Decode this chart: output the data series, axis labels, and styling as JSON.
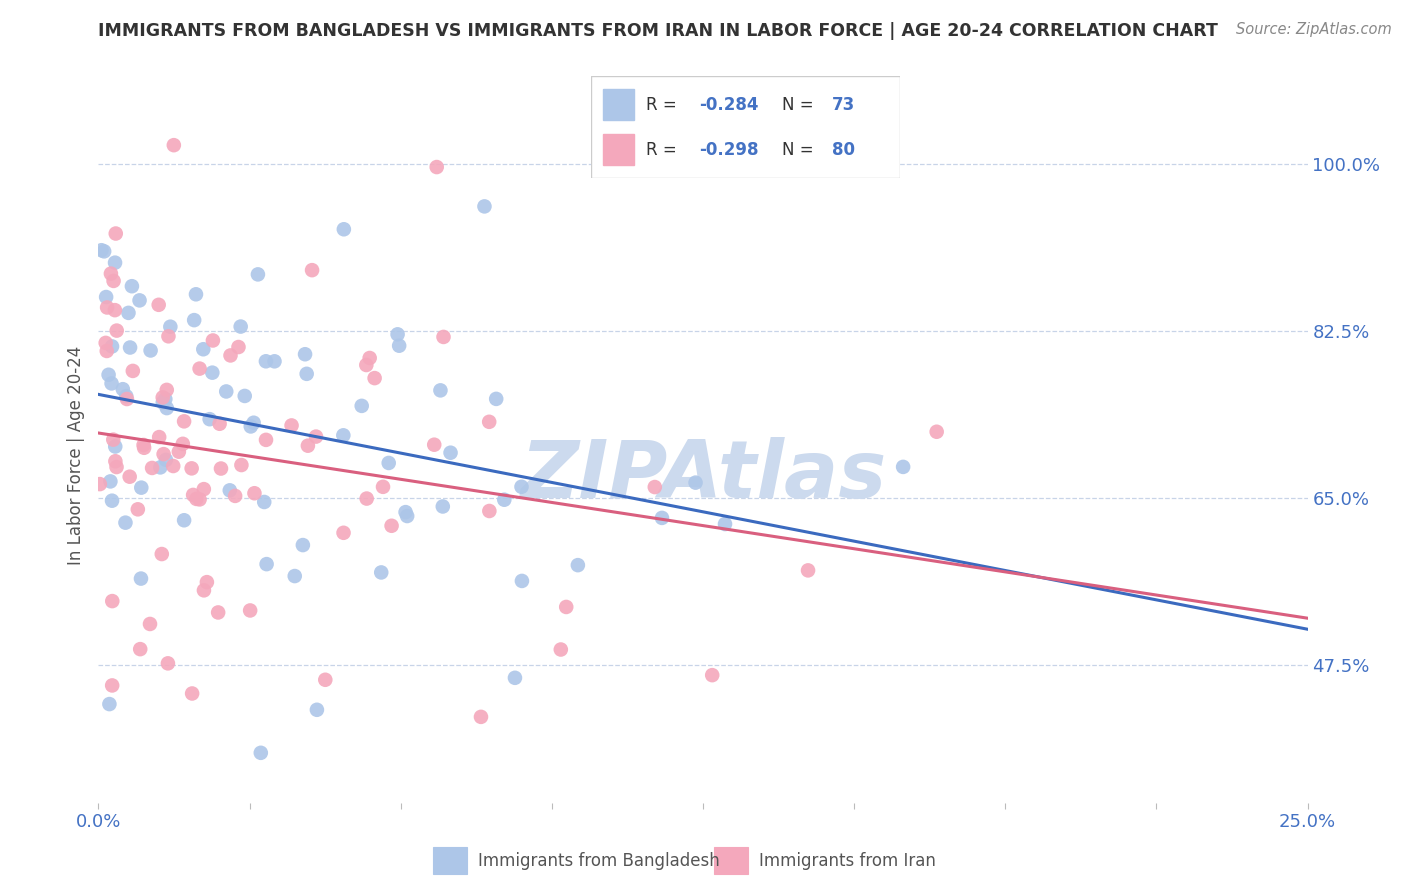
{
  "title": "IMMIGRANTS FROM BANGLADESH VS IMMIGRANTS FROM IRAN IN LABOR FORCE | AGE 20-24 CORRELATION CHART",
  "source": "Source: ZipAtlas.com",
  "ylabel_label": "In Labor Force | Age 20-24",
  "legend_r1": "-0.284",
  "legend_n1": "73",
  "legend_r2": "-0.298",
  "legend_n2": "80",
  "color_bangladesh": "#adc6e8",
  "color_iran": "#f4a8bc",
  "color_line_bangladesh": "#3b6abf",
  "color_line_iran": "#d95f7f",
  "color_axis_text": "#4472c4",
  "color_watermark": "#ccdaee",
  "xmin": 0.0,
  "xmax": 0.25,
  "ymin": 0.33,
  "ymax": 1.06,
  "ytick_vals": [
    0.475,
    0.65,
    0.825,
    1.0
  ],
  "ytick_labels": [
    "47.5%",
    "65.0%",
    "82.5%",
    "100.0%"
  ],
  "R_bangladesh": -0.284,
  "N_bangladesh": 73,
  "R_iran": -0.298,
  "N_iran": 80
}
